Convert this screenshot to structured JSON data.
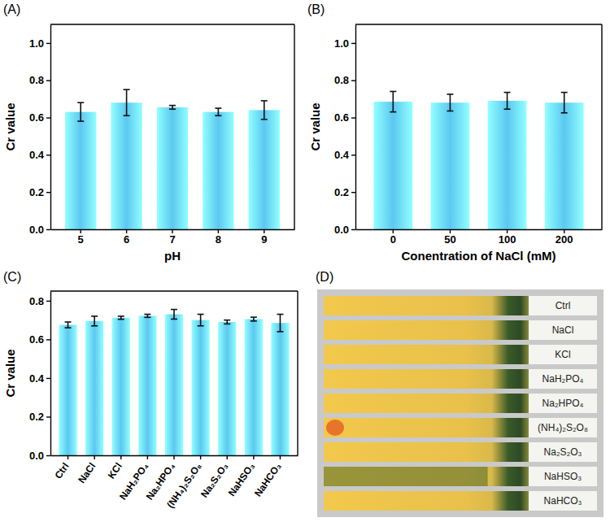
{
  "panel_labels": [
    "(A)",
    "(B)",
    "(C)",
    "(D)"
  ],
  "chart_data": [
    {
      "type": "bar",
      "x_label": "pH",
      "y_label": "Cr value",
      "categories": [
        "5",
        "6",
        "7",
        "8",
        "9"
      ],
      "values": [
        0.63,
        0.68,
        0.655,
        0.63,
        0.64
      ],
      "errors": [
        0.05,
        0.07,
        0.01,
        0.02,
        0.05
      ],
      "color": "#5bc8f0",
      "grid": false,
      "ylim": [
        0,
        1.1
      ],
      "yticks": [
        {
          "value": 0,
          "label": "0.0"
        },
        0.2,
        0.4,
        0.6,
        0.8,
        {
          "value": 1,
          "label": "1.0"
        }
      ]
    },
    {
      "type": "bar",
      "x_label": "Conentration of NaCl (mM)",
      "y_label": "Cr value",
      "categories": [
        "0",
        "50",
        "100",
        "200"
      ],
      "values": [
        0.685,
        0.68,
        0.69,
        0.68
      ],
      "errors": [
        0.055,
        0.045,
        0.045,
        0.055
      ],
      "color": "#5bc8f0",
      "grid": false,
      "ylim": [
        0,
        1.1
      ],
      "yticks": [
        {
          "value": 0,
          "label": "0.0"
        },
        0.2,
        0.4,
        0.6,
        0.8,
        {
          "value": 1,
          "label": "1.0"
        }
      ]
    },
    {
      "type": "bar",
      "y_label": "Cr value",
      "categories": [
        "Ctrl",
        "NaCl",
        "KCl",
        "NaH₂PO₄",
        "Na₂HPO₄",
        "(NH₄)₂S₂O₈",
        "Na₂S₂O₃",
        "NaHSO₃",
        "NaHCO₃"
      ],
      "values": [
        0.675,
        0.695,
        0.712,
        0.722,
        0.73,
        0.7,
        0.69,
        0.705,
        0.685
      ],
      "errors": [
        0.015,
        0.025,
        0.008,
        0.008,
        0.025,
        0.03,
        0.01,
        0.01,
        0.045
      ],
      "color": "#5bc8f0",
      "grid": false,
      "ylim": [
        0,
        0.85
      ],
      "yticks": [
        {
          "value": 0,
          "label": "0.0"
        },
        0.2,
        0.4,
        0.6,
        0.8
      ]
    }
  ],
  "photo": {
    "labels": [
      "Ctrl",
      "NaCl",
      "KCl",
      "NaH₂PO₄",
      "Na₂HPO₄",
      "(NH₄)₂S₂O₈",
      "Na₂S₂O₃",
      "NaHSO₃",
      "NaHCO₃"
    ]
  }
}
